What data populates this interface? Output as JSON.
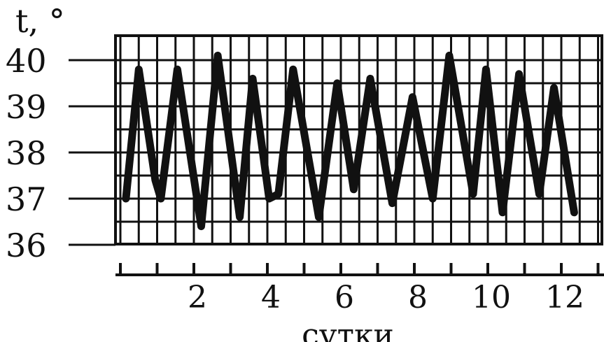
{
  "chart_data": {
    "type": "line",
    "ylabel": "t, °",
    "xlabel": "сутки",
    "ylim": [
      36,
      40
    ],
    "xlim": [
      0,
      12.5
    ],
    "y_ticks": [
      "36",
      "37",
      "38",
      "39",
      "40"
    ],
    "x_ticks": [
      "2",
      "4",
      "6",
      "8",
      "10",
      "12"
    ],
    "grid": true,
    "series": [
      {
        "values": [
          {
            "x": 0.15,
            "y": 37.0
          },
          {
            "x": 0.5,
            "y": 39.8
          },
          {
            "x": 0.95,
            "y": 37.4
          },
          {
            "x": 1.1,
            "y": 37.0
          },
          {
            "x": 1.55,
            "y": 39.8
          },
          {
            "x": 2.2,
            "y": 36.4
          },
          {
            "x": 2.65,
            "y": 40.1
          },
          {
            "x": 3.25,
            "y": 36.6
          },
          {
            "x": 3.6,
            "y": 39.6
          },
          {
            "x": 4.05,
            "y": 37.0
          },
          {
            "x": 4.3,
            "y": 37.1
          },
          {
            "x": 4.7,
            "y": 39.8
          },
          {
            "x": 5.4,
            "y": 36.6
          },
          {
            "x": 5.9,
            "y": 39.5
          },
          {
            "x": 6.35,
            "y": 37.2
          },
          {
            "x": 6.8,
            "y": 39.6
          },
          {
            "x": 7.4,
            "y": 36.9
          },
          {
            "x": 7.95,
            "y": 39.2
          },
          {
            "x": 8.5,
            "y": 37.0
          },
          {
            "x": 8.95,
            "y": 40.1
          },
          {
            "x": 9.6,
            "y": 37.1
          },
          {
            "x": 9.95,
            "y": 39.8
          },
          {
            "x": 10.4,
            "y": 36.7
          },
          {
            "x": 10.85,
            "y": 39.7
          },
          {
            "x": 11.4,
            "y": 37.1
          },
          {
            "x": 11.8,
            "y": 39.4
          },
          {
            "x": 12.35,
            "y": 36.7
          }
        ]
      }
    ]
  }
}
